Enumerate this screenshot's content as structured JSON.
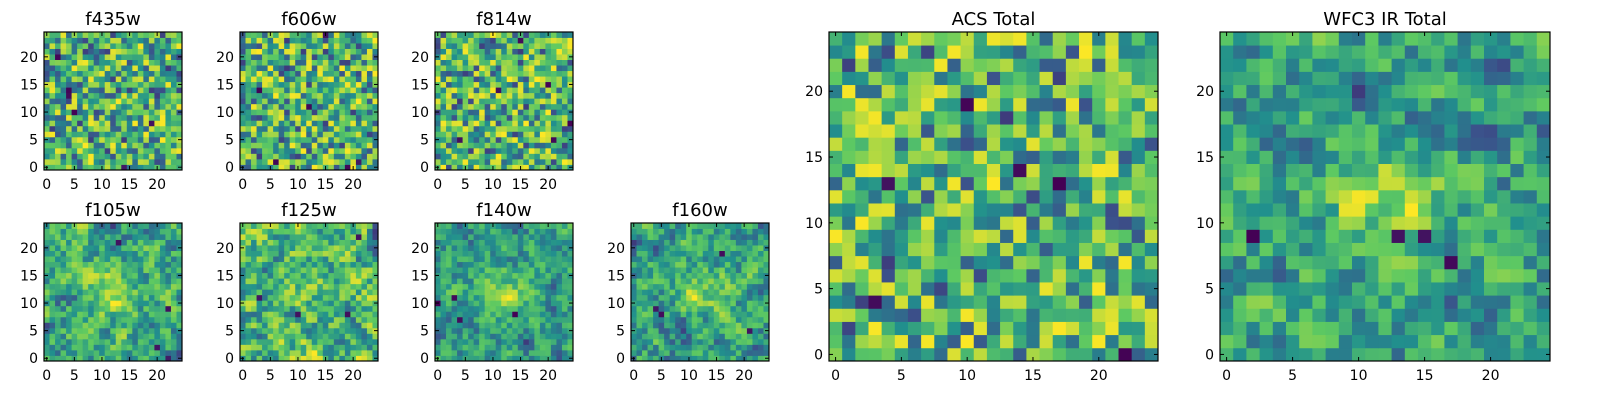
{
  "chart_data": {
    "type": "heatmap",
    "description_free": true,
    "colormap": [
      "#440154",
      "#3b528b",
      "#21908d",
      "#5dc962",
      "#fde725"
    ],
    "grid_size": 25,
    "panels": [
      {
        "id": "f435w",
        "title": "f435w",
        "size": "small",
        "xticks": [
          0,
          5,
          10,
          15,
          20
        ],
        "yticks": [
          0,
          5,
          10,
          15,
          20
        ],
        "style": "noise",
        "seed": 11
      },
      {
        "id": "f606w",
        "title": "f606w",
        "size": "small",
        "xticks": [
          0,
          5,
          10,
          15,
          20
        ],
        "yticks": [
          0,
          5,
          10,
          15,
          20
        ],
        "style": "noise",
        "seed": 23
      },
      {
        "id": "f814w",
        "title": "f814w",
        "size": "small",
        "xticks": [
          0,
          5,
          10,
          15,
          20
        ],
        "yticks": [
          0,
          5,
          10,
          15,
          20
        ],
        "style": "noise",
        "seed": 37
      },
      {
        "id": "f105w",
        "title": "f105w",
        "size": "small",
        "xticks": [
          0,
          5,
          10,
          15,
          20
        ],
        "yticks": [
          0,
          5,
          10,
          15,
          20
        ],
        "style": "source",
        "seed": 41
      },
      {
        "id": "f125w",
        "title": "f125w",
        "size": "small",
        "xticks": [
          0,
          5,
          10,
          15,
          20
        ],
        "yticks": [
          0,
          5,
          10,
          15,
          20
        ],
        "style": "smooth",
        "seed": 53
      },
      {
        "id": "f140w",
        "title": "f140w",
        "size": "small",
        "xticks": [
          0,
          5,
          10,
          15,
          20
        ],
        "yticks": [
          0,
          5,
          10,
          15,
          20
        ],
        "style": "source",
        "seed": 67
      },
      {
        "id": "f160w",
        "title": "f160w",
        "size": "small",
        "xticks": [
          0,
          5,
          10,
          15,
          20
        ],
        "yticks": [
          0,
          5,
          10,
          15,
          20
        ],
        "style": "source",
        "seed": 79
      },
      {
        "id": "acs",
        "title": "ACS Total",
        "size": "large",
        "xticks": [
          0,
          5,
          10,
          15,
          20
        ],
        "yticks": [
          0,
          5,
          10,
          15,
          20
        ],
        "style": "noise",
        "seed": 83
      },
      {
        "id": "wfc3",
        "title": "WFC3 IR Total",
        "size": "large",
        "xticks": [
          0,
          5,
          10,
          15,
          20
        ],
        "yticks": [
          0,
          5,
          10,
          15,
          20
        ],
        "style": "source",
        "seed": 97
      }
    ]
  }
}
